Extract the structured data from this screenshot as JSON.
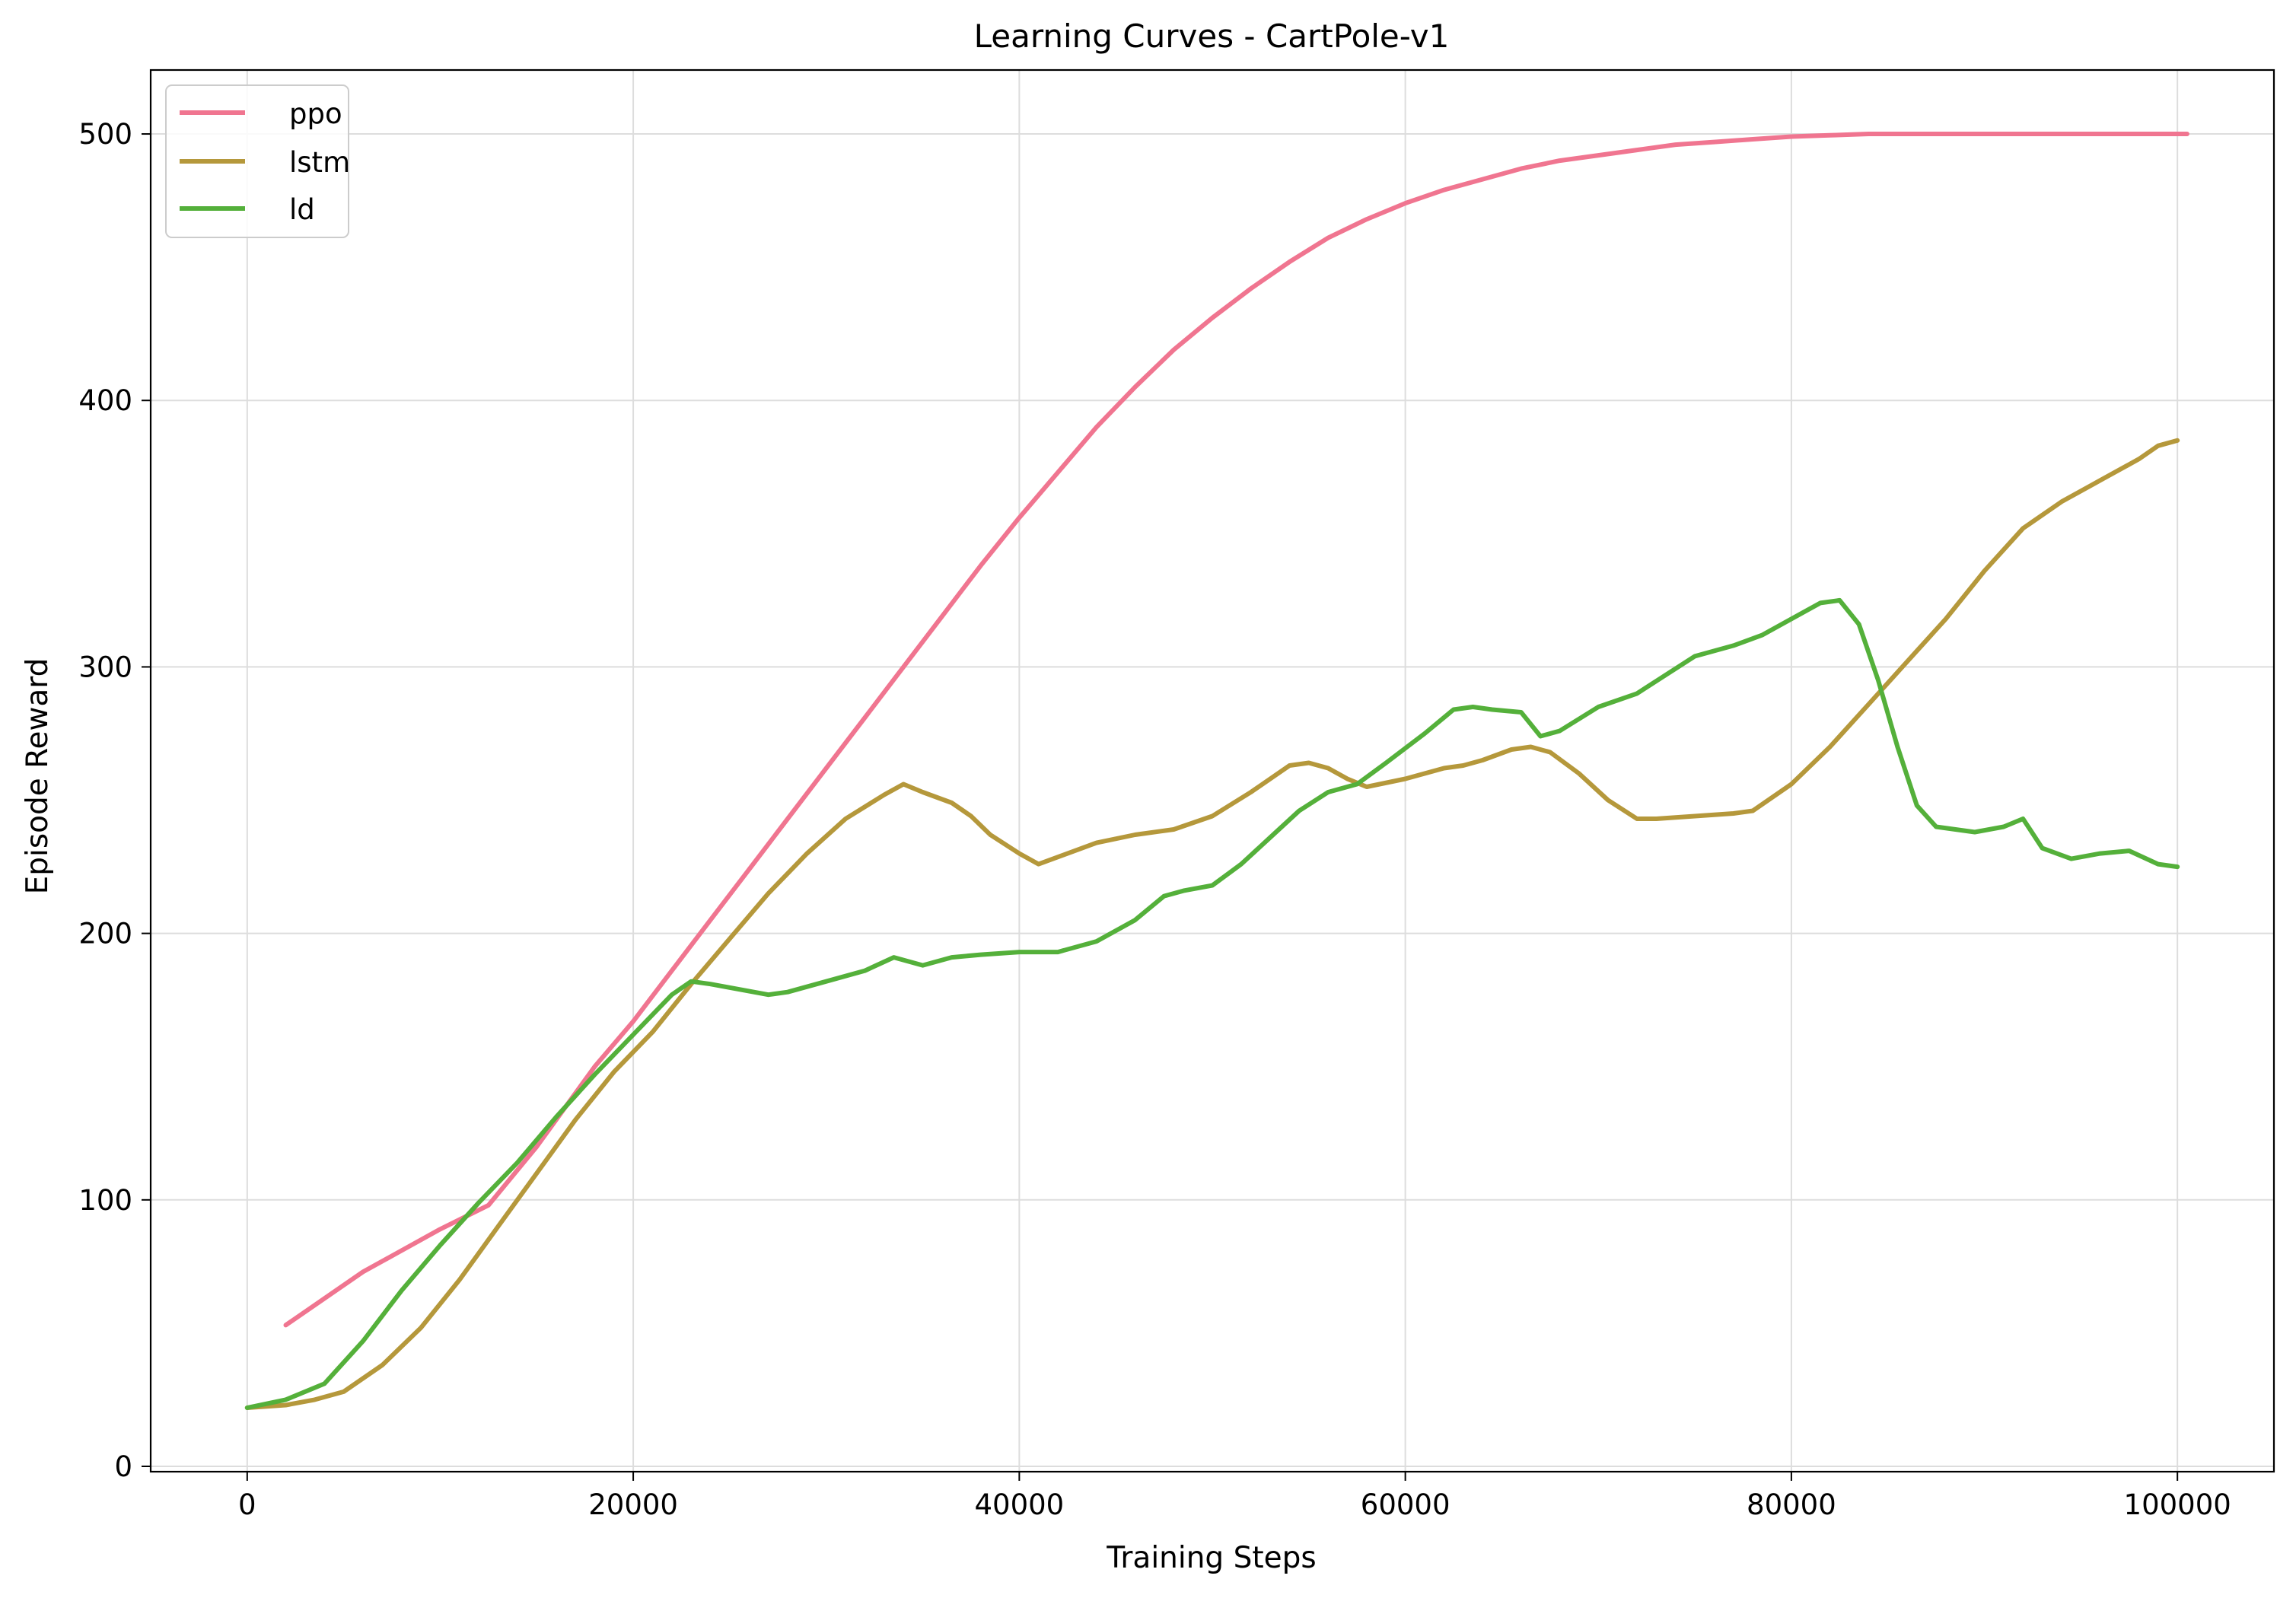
{
  "chart_data": {
    "type": "line",
    "title": "Learning Curves - CartPole-v1",
    "xlabel": "Training Steps",
    "ylabel": "Episode Reward",
    "xlim": [
      -5000,
      105000
    ],
    "ylim": [
      -2,
      524
    ],
    "xticks": [
      0,
      20000,
      40000,
      60000,
      80000,
      100000
    ],
    "xtick_labels": [
      "0",
      "20000",
      "40000",
      "60000",
      "80000",
      "100000"
    ],
    "yticks": [
      0,
      100,
      200,
      300,
      400,
      500
    ],
    "ytick_labels": [
      "0",
      "100",
      "200",
      "300",
      "400",
      "500"
    ],
    "grid": true,
    "legend_position": "top-left",
    "series": [
      {
        "name": "ppo",
        "color": "#f07590",
        "x": [
          2000,
          6000,
          10000,
          12500,
          15000,
          18000,
          20000,
          22000,
          24000,
          26000,
          28000,
          30000,
          32000,
          34000,
          36000,
          38000,
          40000,
          42000,
          44000,
          46000,
          48000,
          50000,
          52000,
          54000,
          56000,
          58000,
          60000,
          62000,
          64000,
          66000,
          68000,
          70000,
          72000,
          74000,
          76000,
          78000,
          80000,
          82000,
          84000,
          86000,
          88000,
          90000,
          95000,
          100500
        ],
        "y": [
          53,
          73,
          89,
          98,
          120,
          150,
          167,
          186,
          205,
          224,
          243,
          262,
          281,
          300,
          319,
          338,
          356,
          373,
          390,
          405,
          419,
          431,
          442,
          452,
          461,
          468,
          474,
          479,
          483,
          487,
          490,
          492,
          494,
          496,
          497,
          498,
          499,
          499.5,
          500,
          500,
          500,
          500,
          500,
          500
        ]
      },
      {
        "name": "lstm",
        "color": "#b5983b",
        "x": [
          0,
          2000,
          3500,
          5000,
          7000,
          9000,
          11000,
          13000,
          15000,
          17000,
          19000,
          21000,
          23000,
          25000,
          27000,
          29000,
          31000,
          33000,
          34000,
          35000,
          36500,
          37500,
          38500,
          40000,
          41000,
          42500,
          44000,
          46000,
          48000,
          50000,
          52000,
          54000,
          55000,
          56000,
          57000,
          58000,
          60000,
          62000,
          63000,
          64000,
          65500,
          66500,
          67500,
          69000,
          70500,
          72000,
          73000,
          75000,
          77000,
          78000,
          80000,
          82000,
          84000,
          86000,
          88000,
          90000,
          92000,
          94000,
          96000,
          98000,
          99000,
          100000
        ],
        "y": [
          22,
          23,
          25,
          28,
          38,
          52,
          70,
          90,
          110,
          130,
          148,
          163,
          181,
          198,
          215,
          230,
          243,
          252,
          256,
          253,
          249,
          244,
          237,
          230,
          226,
          230,
          234,
          237,
          239,
          244,
          253,
          263,
          264,
          262,
          258,
          255,
          258,
          262,
          263,
          265,
          269,
          270,
          268,
          260,
          250,
          243,
          243,
          244,
          245,
          246,
          256,
          270,
          286,
          302,
          318,
          336,
          352,
          362,
          370,
          378,
          383,
          385
        ]
      },
      {
        "name": "ld",
        "color": "#54b03a",
        "x": [
          0,
          2000,
          4000,
          6000,
          8000,
          10000,
          12000,
          14000,
          16000,
          18000,
          20000,
          22000,
          23000,
          24000,
          25500,
          27000,
          28000,
          30000,
          32000,
          33500,
          35000,
          36500,
          38000,
          40000,
          42000,
          44000,
          46000,
          47500,
          48500,
          50000,
          51500,
          53000,
          54500,
          56000,
          57500,
          59000,
          61000,
          62500,
          63500,
          64500,
          66000,
          67000,
          68000,
          70000,
          72000,
          73500,
          75000,
          77000,
          78500,
          80000,
          81500,
          82500,
          83500,
          84500,
          85500,
          86500,
          87500,
          89500,
          91000,
          92000,
          93000,
          94500,
          96000,
          97500,
          99000,
          100000
        ],
        "y": [
          22,
          25,
          31,
          47,
          66,
          83,
          99,
          114,
          131,
          147,
          162,
          177,
          182,
          181,
          179,
          177,
          178,
          182,
          186,
          191,
          188,
          191,
          192,
          193,
          193,
          197,
          205,
          214,
          216,
          218,
          226,
          236,
          246,
          253,
          256,
          264,
          275,
          284,
          285,
          284,
          283,
          274,
          276,
          285,
          290,
          297,
          304,
          308,
          312,
          318,
          324,
          325,
          316,
          295,
          270,
          248,
          240,
          238,
          240,
          243,
          232,
          228,
          230,
          231,
          226,
          225
        ]
      }
    ]
  }
}
